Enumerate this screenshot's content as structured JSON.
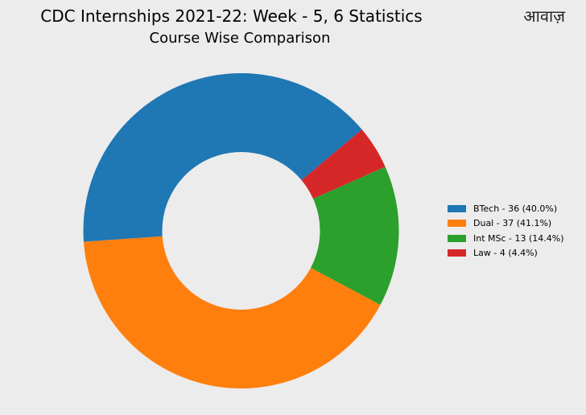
{
  "logo_text": "आवाज़",
  "chart_data": {
    "type": "pie",
    "style": "donut",
    "title": "CDC Internships 2021-22: Week - 5, 6 Statistics",
    "subtitle": "Course Wise Comparison",
    "legend_position": "right",
    "categories": [
      "BTech",
      "Dual",
      "Int MSc",
      "Law"
    ],
    "values": [
      36,
      37,
      13,
      4
    ],
    "colors": [
      "#1f77b4",
      "#ff7f0e",
      "#2ca02c",
      "#d62728"
    ],
    "legend_labels": [
      "BTech - 36 (40.0%)",
      "Dual - 37 (41.1%)",
      "Int MSc - 13 (14.4%)",
      "Law - 4 (4.4%)"
    ]
  }
}
